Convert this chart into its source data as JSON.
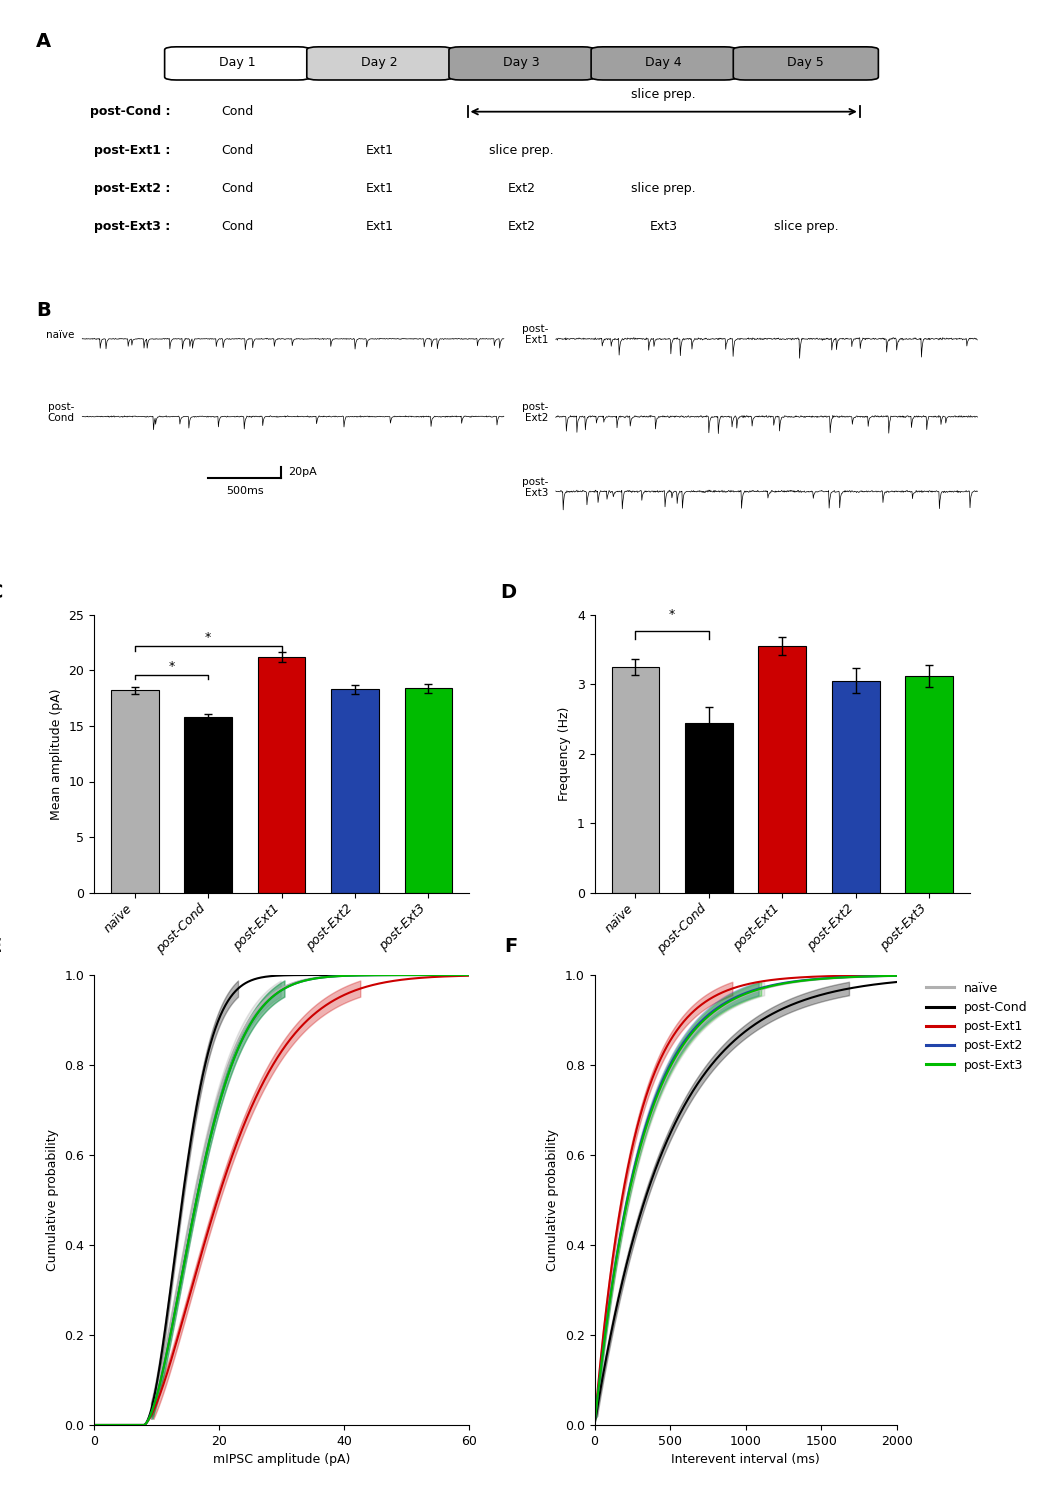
{
  "panel_A": {
    "days": [
      "Day 1",
      "Day 2",
      "Day 3",
      "Day 4",
      "Day 5"
    ],
    "day_colors": [
      "#ffffff",
      "#d0d0d0",
      "#a0a0a0",
      "#a0a0a0",
      "#a0a0a0"
    ]
  },
  "panel_C": {
    "categories": [
      "naïve",
      "post-Cond",
      "post-Ext1",
      "post-Ext2",
      "post-Ext3"
    ],
    "values": [
      18.2,
      15.8,
      21.2,
      18.3,
      18.4
    ],
    "errors": [
      0.35,
      0.25,
      0.45,
      0.4,
      0.4
    ],
    "colors": [
      "#b0b0b0",
      "#000000",
      "#cc0000",
      "#2244aa",
      "#00bb00"
    ],
    "ylabel": "Mean amplitude (pA)",
    "ylim": [
      0,
      25
    ],
    "yticks": [
      0,
      5,
      10,
      15,
      20,
      25
    ]
  },
  "panel_D": {
    "categories": [
      "naïve",
      "post-Cond",
      "post-Ext1",
      "post-Ext2",
      "post-Ext3"
    ],
    "values": [
      3.25,
      2.45,
      3.55,
      3.05,
      3.12
    ],
    "errors": [
      0.12,
      0.22,
      0.13,
      0.18,
      0.16
    ],
    "colors": [
      "#b0b0b0",
      "#000000",
      "#cc0000",
      "#2244aa",
      "#00bb00"
    ],
    "ylabel": "Frequency (Hz)",
    "ylim": [
      0,
      4
    ],
    "yticks": [
      0,
      1,
      2,
      3,
      4
    ]
  },
  "panel_E": {
    "xlabel": "mIPSC amplitude (pA)",
    "ylabel": "Cumulative probability",
    "xlim": [
      0,
      60
    ],
    "ylim": [
      0.0,
      1.0
    ],
    "yticks": [
      0.0,
      0.2,
      0.4,
      0.6,
      0.8,
      1.0
    ],
    "xticks": [
      0,
      20,
      40,
      60
    ]
  },
  "panel_F": {
    "xlabel": "Interevent interval (ms)",
    "ylabel": "Cumulative probability",
    "xlim": [
      0,
      2000
    ],
    "ylim": [
      0.0,
      1.0
    ],
    "yticks": [
      0.0,
      0.2,
      0.4,
      0.6,
      0.8,
      1.0
    ],
    "xticks": [
      0,
      500,
      1000,
      1500,
      2000
    ]
  },
  "legend": {
    "labels": [
      "naïve",
      "post-Cond",
      "post-Ext1",
      "post-Ext2",
      "post-Ext3"
    ],
    "colors": [
      "#b0b0b0",
      "#000000",
      "#cc0000",
      "#2244aa",
      "#00bb00"
    ]
  },
  "colors": [
    "#b0b0b0",
    "#000000",
    "#cc0000",
    "#2244aa",
    "#00bb00"
  ]
}
